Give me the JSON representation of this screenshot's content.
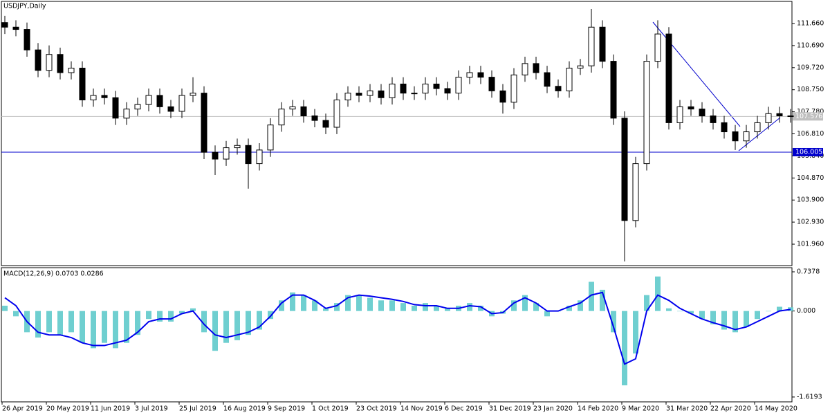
{
  "chart_data": [
    {
      "type": "candlestick",
      "title": "USDJPY,Daily",
      "open": [
        111.7,
        111.5,
        111.4,
        110.5,
        109.6,
        110.3,
        109.5,
        109.7,
        108.3,
        108.5,
        108.4,
        107.5,
        107.9,
        108.1,
        108.5,
        108.0,
        107.8,
        108.5,
        108.6,
        106.0,
        105.7,
        106.2,
        106.3,
        105.5,
        106.1,
        107.2,
        107.9,
        108.0,
        107.6,
        107.4,
        107.1,
        108.3,
        108.6,
        108.5,
        108.7,
        108.4,
        109.0,
        108.6,
        108.6,
        109.0,
        108.8,
        108.6,
        109.3,
        109.5,
        109.3,
        108.7,
        108.2,
        109.4,
        109.9,
        109.5,
        108.9,
        108.7,
        109.7,
        109.8,
        111.5,
        110.0,
        107.5,
        103.0,
        105.5,
        110.0,
        111.2,
        107.3,
        108.0,
        107.9,
        107.6,
        107.3,
        106.9,
        106.5,
        106.9,
        107.3,
        107.7,
        107.6
      ],
      "high": [
        112.0,
        111.8,
        111.7,
        110.8,
        110.7,
        110.6,
        110.0,
        110.0,
        108.8,
        108.8,
        108.7,
        108.2,
        108.4,
        108.8,
        108.8,
        108.3,
        108.8,
        109.3,
        108.9,
        106.3,
        106.5,
        106.6,
        106.6,
        106.4,
        107.5,
        108.2,
        108.3,
        108.3,
        107.9,
        107.7,
        108.6,
        108.9,
        108.9,
        109.0,
        109.0,
        109.3,
        109.3,
        108.9,
        109.3,
        109.3,
        109.1,
        109.6,
        109.8,
        109.8,
        109.6,
        109.0,
        109.7,
        110.2,
        110.2,
        109.8,
        109.2,
        110.0,
        110.1,
        112.3,
        111.8,
        110.3,
        107.8,
        105.8,
        110.3,
        111.8,
        111.5,
        108.3,
        108.3,
        108.2,
        107.9,
        107.6,
        107.2,
        107.2,
        107.6,
        108.0,
        108.0,
        107.9
      ],
      "low": [
        111.2,
        111.1,
        110.2,
        109.3,
        109.3,
        109.2,
        109.2,
        108.0,
        108.0,
        108.1,
        107.2,
        107.2,
        107.6,
        107.8,
        107.7,
        107.5,
        107.5,
        108.2,
        105.7,
        105.0,
        105.4,
        105.9,
        104.4,
        105.2,
        105.8,
        106.9,
        107.6,
        107.3,
        107.1,
        106.8,
        106.8,
        108.0,
        108.2,
        108.2,
        108.1,
        108.1,
        108.3,
        108.3,
        108.3,
        108.5,
        108.3,
        108.3,
        109.0,
        109.0,
        108.4,
        107.7,
        107.9,
        109.1,
        109.2,
        108.6,
        108.4,
        108.4,
        109.4,
        109.5,
        109.7,
        107.2,
        101.2,
        102.7,
        105.2,
        109.7,
        107.0,
        107.0,
        107.6,
        107.3,
        107.0,
        106.6,
        106.1,
        106.2,
        106.6,
        107.0,
        107.3,
        107.3
      ],
      "close": [
        111.5,
        111.4,
        110.5,
        109.6,
        110.3,
        109.5,
        109.7,
        108.3,
        108.5,
        108.4,
        107.5,
        107.9,
        108.1,
        108.5,
        108.0,
        107.8,
        108.5,
        108.6,
        106.0,
        105.7,
        106.2,
        106.3,
        105.5,
        106.1,
        107.2,
        107.9,
        108.0,
        107.6,
        107.4,
        107.1,
        108.3,
        108.6,
        108.5,
        108.7,
        108.4,
        109.0,
        108.6,
        108.6,
        109.0,
        108.8,
        108.6,
        109.3,
        109.5,
        109.3,
        108.7,
        108.2,
        109.4,
        109.9,
        109.5,
        108.9,
        108.7,
        109.7,
        109.8,
        111.5,
        110.0,
        107.5,
        103.0,
        105.5,
        110.0,
        111.2,
        107.3,
        108.0,
        107.9,
        107.6,
        107.3,
        106.9,
        106.5,
        106.9,
        107.3,
        107.7,
        107.6,
        107.58
      ],
      "ylim": [
        101.018,
        112.633
      ],
      "yticks": [
        {
          "value": 111.66,
          "label": "111.660"
        },
        {
          "value": 110.69,
          "label": "110.690"
        },
        {
          "value": 109.72,
          "label": "109.720"
        },
        {
          "value": 108.75,
          "label": "108.750"
        },
        {
          "value": 107.78,
          "label": "107.780"
        },
        {
          "value": 106.81,
          "label": "106.810"
        },
        {
          "value": 105.84,
          "label": "105.840"
        },
        {
          "value": 104.87,
          "label": "104.870"
        },
        {
          "value": 103.9,
          "label": "103.900"
        },
        {
          "value": 102.93,
          "label": "102.930"
        },
        {
          "value": 101.96,
          "label": "101.960"
        }
      ],
      "xlim": [
        0,
        71.5
      ],
      "xticks": [
        {
          "value": 0,
          "label": "26 Apr 2019"
        },
        {
          "value": 4,
          "label": "20 May 2019"
        },
        {
          "value": 8,
          "label": "11 Jun 2019"
        },
        {
          "value": 12,
          "label": "3 Jul 2019"
        },
        {
          "value": 16,
          "label": "25 Jul 2019"
        },
        {
          "value": 20,
          "label": "16 Aug 2019"
        },
        {
          "value": 24,
          "label": "9 Sep 2019"
        },
        {
          "value": 28,
          "label": "1 Oct 2019"
        },
        {
          "value": 32,
          "label": "23 Oct 2019"
        },
        {
          "value": 36,
          "label": "14 Nov 2019"
        },
        {
          "value": 40,
          "label": "6 Dec 2019"
        },
        {
          "value": 44,
          "label": "31 Dec 2019"
        },
        {
          "value": 48,
          "label": "23 Jan 2020"
        },
        {
          "value": 52,
          "label": "14 Feb 2020"
        },
        {
          "value": 56,
          "label": "9 Mar 2020"
        },
        {
          "value": 60,
          "label": "31 Mar 2020"
        },
        {
          "value": 64,
          "label": "22 Apr 2020"
        },
        {
          "value": 68,
          "label": "14 May 2020"
        }
      ],
      "last_price": 107.576,
      "last_price_color": "#c0c0c0",
      "hline": 106.005,
      "hline_color": "#0000cc"
    },
    {
      "type": "macd",
      "title": "MACD(12,26,9) 0.0703 0.0286",
      "ylim": [
        -1.711,
        0.816
      ],
      "yticks": [
        0.7378,
        {
          "value": 0,
          "label": "0.000"
        },
        -1.6193
      ],
      "series": [
        {
          "type": "bar",
          "color": "#6fcfd0",
          "values": [
            0.1,
            -0.1,
            -0.4,
            -0.5,
            -0.4,
            -0.45,
            -0.4,
            -0.6,
            -0.7,
            -0.6,
            -0.7,
            -0.6,
            -0.45,
            -0.15,
            -0.2,
            -0.2,
            -0.05,
            0.05,
            -0.4,
            -0.75,
            -0.6,
            -0.55,
            -0.45,
            -0.35,
            -0.15,
            0.2,
            0.35,
            0.3,
            0.2,
            0.05,
            0.15,
            0.3,
            0.3,
            0.25,
            0.2,
            0.2,
            0.15,
            0.1,
            0.15,
            0.1,
            0.05,
            0.1,
            0.15,
            0.1,
            -0.1,
            -0.05,
            0.2,
            0.3,
            0.15,
            -0.1,
            0.0,
            0.1,
            0.2,
            0.55,
            0.4,
            -0.4,
            -1.4,
            -0.8,
            0.3,
            0.65,
            0.05,
            0.0,
            -0.05,
            -0.15,
            -0.25,
            -0.35,
            -0.4,
            -0.3,
            -0.15,
            0.0,
            0.08,
            0.07
          ]
        },
        {
          "type": "line",
          "color": "#0000ee",
          "values": [
            0.25,
            0.1,
            -0.2,
            -0.4,
            -0.45,
            -0.45,
            -0.5,
            -0.6,
            -0.65,
            -0.65,
            -0.6,
            -0.55,
            -0.4,
            -0.2,
            -0.15,
            -0.15,
            -0.05,
            0.0,
            -0.25,
            -0.45,
            -0.5,
            -0.45,
            -0.4,
            -0.3,
            -0.1,
            0.15,
            0.3,
            0.3,
            0.2,
            0.05,
            0.1,
            0.25,
            0.3,
            0.28,
            0.25,
            0.22,
            0.18,
            0.12,
            0.1,
            0.1,
            0.05,
            0.05,
            0.1,
            0.08,
            -0.05,
            -0.03,
            0.15,
            0.25,
            0.15,
            0.0,
            0.0,
            0.08,
            0.15,
            0.3,
            0.35,
            -0.3,
            -1.0,
            -0.9,
            0.0,
            0.3,
            0.2,
            0.05,
            -0.05,
            -0.15,
            -0.22,
            -0.28,
            -0.35,
            -0.3,
            -0.2,
            -0.1,
            0.0,
            0.03
          ]
        }
      ]
    }
  ]
}
